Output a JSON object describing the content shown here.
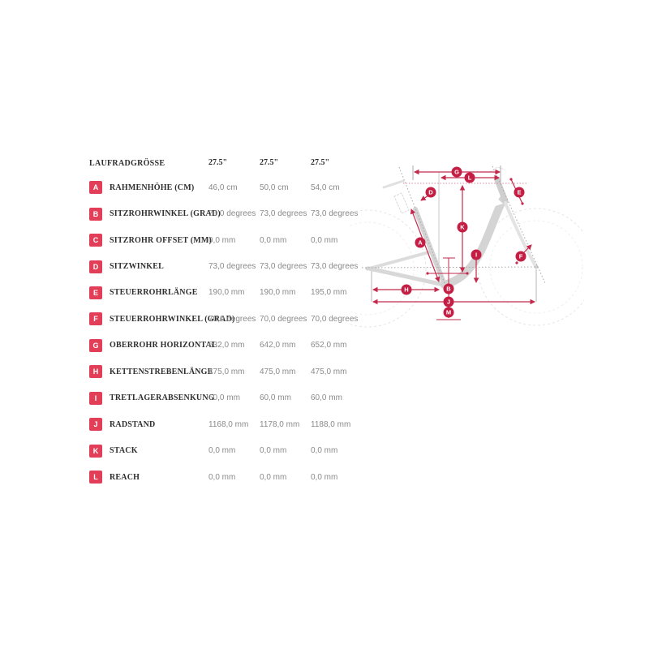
{
  "table": {
    "header": {
      "label": "LAUFRADGRÖSSE",
      "columns": [
        "27.5\"",
        "27.5\"",
        "27.5\""
      ]
    },
    "rows": [
      {
        "badge": "A",
        "label": "RAHMENHÖHE (CM)",
        "values": [
          "46,0 cm",
          "50,0 cm",
          "54,0 cm"
        ]
      },
      {
        "badge": "B",
        "label": "SITZROHRWINKEL (GRAD)",
        "values": [
          "73,0 degrees",
          "73,0 degrees",
          "73,0 degrees"
        ]
      },
      {
        "badge": "C",
        "label": "SITZROHR OFFSET (MM)",
        "values": [
          "0,0 mm",
          "0,0 mm",
          "0,0 mm"
        ]
      },
      {
        "badge": "D",
        "label": "SITZWINKEL",
        "values": [
          "73,0 degrees",
          "73,0 degrees",
          "73,0 degrees"
        ]
      },
      {
        "badge": "E",
        "label": "STEUERROHRLÄNGE",
        "values": [
          "190,0 mm",
          "190,0 mm",
          "195,0 mm"
        ]
      },
      {
        "badge": "F",
        "label": "STEUERROHRWINKEL (GRAD)",
        "values": [
          "70,0 degrees",
          "70,0 degrees",
          "70,0 degrees"
        ]
      },
      {
        "badge": "G",
        "label": "OBERROHR HORIZONTAL",
        "values": [
          "632,0 mm",
          "642,0 mm",
          "652,0 mm"
        ]
      },
      {
        "badge": "H",
        "label": "KETTENSTREBENLÄNGE",
        "values": [
          "475,0 mm",
          "475,0 mm",
          "475,0 mm"
        ]
      },
      {
        "badge": "I",
        "label": "TRETLAGERABSENKUNG",
        "values": [
          "60,0 mm",
          "60,0 mm",
          "60,0 mm"
        ]
      },
      {
        "badge": "J",
        "label": "RADSTAND",
        "values": [
          "1168,0 mm",
          "1178,0 mm",
          "1188,0 mm"
        ]
      },
      {
        "badge": "K",
        "label": "STACK",
        "values": [
          "0,0 mm",
          "0,0 mm",
          "0,0 mm"
        ]
      },
      {
        "badge": "L",
        "label": "REACH",
        "values": [
          "0,0 mm",
          "0,0 mm",
          "0,0 mm"
        ]
      }
    ]
  },
  "diagram": {
    "markers": [
      "G",
      "L",
      "D",
      "E",
      "K",
      "A",
      "I",
      "F",
      "H",
      "B",
      "J",
      "M"
    ]
  },
  "colors": {
    "table_badge": "#e23e57",
    "diagram_badge": "#c41e45",
    "dim_line": "#c22a4c",
    "label_text": "#2e2e2e",
    "value_text": "#8a8a8a",
    "frame": "#d6d6d6"
  }
}
